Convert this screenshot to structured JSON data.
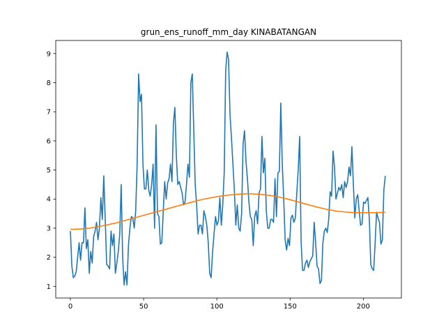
{
  "chart_data": {
    "type": "line",
    "title": "grun_ens_runoff_mm_day KINABATANGAN",
    "xlabel": "",
    "ylabel": "",
    "xlim": [
      -10,
      226
    ],
    "ylim": [
      0.6,
      9.45
    ],
    "xticks": [
      0,
      50,
      100,
      150,
      200
    ],
    "yticks": [
      1,
      2,
      3,
      4,
      5,
      6,
      7,
      8,
      9
    ],
    "grid": false,
    "legend": "none",
    "colors": {
      "series_1": "#1f77b4",
      "series_2": "#ff7f0e"
    },
    "series": [
      {
        "values": [
          2.9,
          1.7,
          1.3,
          1.35,
          1.5,
          2.0,
          2.5,
          1.9,
          2.5,
          2.5,
          3.7,
          2.3,
          2.6,
          1.45,
          2.2,
          1.8,
          2.7,
          2.9,
          3.2,
          2.6,
          3.0,
          4.05,
          3.3,
          4.8,
          3.3,
          1.75,
          1.7,
          1.6,
          2.9,
          2.4,
          2.8,
          1.45,
          1.8,
          2.2,
          2.8,
          4.5,
          2.0,
          1.05,
          1.5,
          1.05,
          2.4,
          3.0,
          3.4,
          3.35,
          3.0,
          3.6,
          5.2,
          8.3,
          7.35,
          7.6,
          5.2,
          4.35,
          4.35,
          5.0,
          4.3,
          4.1,
          4.5,
          5.2,
          3.0,
          6.55,
          3.5,
          3.4,
          2.45,
          2.5,
          3.6,
          4.6,
          4.0,
          4.55,
          4.7,
          5.2,
          4.6,
          6.6,
          7.15,
          5.5,
          4.5,
          4.6,
          4.4,
          4.2,
          3.8,
          3.9,
          4.5,
          5.2,
          4.75,
          8.0,
          8.3,
          6.4,
          4.5,
          3.8,
          2.8,
          3.1,
          3.1,
          2.8,
          3.6,
          3.4,
          3.1,
          2.5,
          1.45,
          1.3,
          2.2,
          2.8,
          3.4,
          3.1,
          3.25,
          4.05,
          3.1,
          3.8,
          4.9,
          8.4,
          9.05,
          8.8,
          6.9,
          6.1,
          5.2,
          4.3,
          3.1,
          3.8,
          3.0,
          2.9,
          3.5,
          5.9,
          6.35,
          5.3,
          4.7,
          3.9,
          3.4,
          3.3,
          2.4,
          3.4,
          3.6,
          3.15,
          4.2,
          4.35,
          6.15,
          4.9,
          5.4,
          3.6,
          3.0,
          3.0,
          3.3,
          3.3,
          3.2,
          4.7,
          3.4,
          4.9,
          4.95,
          7.3,
          5.2,
          4.0,
          2.6,
          2.25,
          2.65,
          2.4,
          3.35,
          3.45,
          3.2,
          3.35,
          4.2,
          5.0,
          6.15,
          2.5,
          1.55,
          1.55,
          1.8,
          1.9,
          1.65,
          1.85,
          1.95,
          2.05,
          3.2,
          2.5,
          1.7,
          1.6,
          1.1,
          1.2,
          2.5,
          2.9,
          3.0,
          2.85,
          3.3,
          4.25,
          4.1,
          5.65,
          5.1,
          4.0,
          4.2,
          4.4,
          4.3,
          4.5,
          4.05,
          4.6,
          4.4,
          4.6,
          5.1,
          4.8,
          5.8,
          4.5,
          3.35,
          4.0,
          4.15,
          3.6,
          3.1,
          3.15,
          3.9,
          3.85,
          3.95,
          4.05,
          3.3,
          1.75,
          1.6,
          1.55,
          2.5,
          3.55,
          3.35,
          3.2,
          2.45,
          2.6,
          4.3,
          4.8
        ]
      },
      {
        "values": [
          2.96,
          2.96,
          2.97,
          2.97,
          2.98,
          2.99,
          3.0,
          3.02,
          3.04,
          3.06,
          3.08,
          3.1,
          3.12,
          3.15,
          3.17,
          3.2,
          3.23,
          3.26,
          3.29,
          3.32,
          3.35,
          3.38,
          3.41,
          3.44,
          3.47,
          3.5,
          3.53,
          3.56,
          3.59,
          3.62,
          3.65,
          3.68,
          3.71,
          3.74,
          3.77,
          3.8,
          3.83,
          3.86,
          3.89,
          3.92,
          3.95,
          3.97,
          4.0,
          4.02,
          4.04,
          4.06,
          4.08,
          4.1,
          4.11,
          4.13,
          4.14,
          4.15,
          4.16,
          4.17,
          4.17,
          4.18,
          4.18,
          4.18,
          4.17,
          4.17,
          4.16,
          4.15,
          4.13,
          4.12,
          4.1,
          4.08,
          4.06,
          4.03,
          4.01,
          3.98,
          3.95,
          3.92,
          3.89,
          3.86,
          3.83,
          3.8,
          3.77,
          3.74,
          3.71,
          3.69,
          3.66,
          3.64,
          3.62,
          3.6,
          3.58,
          3.57,
          3.56,
          3.55,
          3.54,
          3.54,
          3.53,
          3.53,
          3.53,
          3.53,
          3.53,
          3.53,
          3.53,
          3.54,
          3.54,
          3.55
        ]
      }
    ]
  }
}
